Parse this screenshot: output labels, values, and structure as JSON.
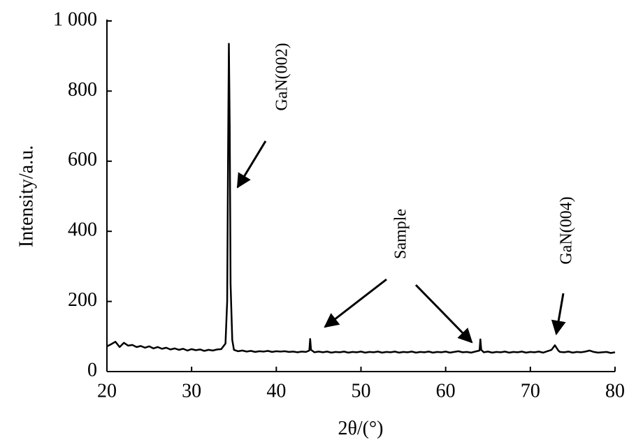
{
  "chart_data": {
    "type": "line",
    "color": "#000000",
    "x_label": "2θ/(°)",
    "y_label": "Intensity/a.u.",
    "xlim": [
      20,
      80
    ],
    "xticks": [
      20,
      30,
      40,
      50,
      60,
      70,
      80
    ],
    "ylim": [
      0,
      1000
    ],
    "yticks": [
      0,
      200,
      400,
      600,
      800,
      {
        "value": 1000,
        "label": "1 000"
      }
    ],
    "annotations": [
      "GaN(002)",
      "Sample",
      "GaN(004)"
    ],
    "x": [
      20,
      20.5,
      21,
      21.5,
      22,
      22.5,
      23,
      23.5,
      24,
      24.5,
      25,
      25.5,
      26,
      26.5,
      27,
      27.5,
      28,
      28.5,
      29,
      29.5,
      30,
      30.5,
      31,
      31.5,
      32,
      32.5,
      33,
      33.5,
      34,
      34.2,
      34.3,
      34.4,
      34.5,
      34.6,
      34.8,
      35,
      35.5,
      36,
      36.5,
      37,
      37.5,
      38,
      38.5,
      39,
      39.5,
      40,
      40.5,
      41,
      41.5,
      42,
      42.5,
      43,
      43.5,
      43.9,
      44,
      44.1,
      44.5,
      45,
      45.5,
      46,
      46.5,
      47,
      47.5,
      48,
      48.5,
      49,
      49.5,
      50,
      50.5,
      51,
      51.5,
      52,
      52.5,
      53,
      53.5,
      54,
      54.5,
      55,
      55.5,
      56,
      56.5,
      57,
      57.5,
      58,
      58.5,
      59,
      59.5,
      60,
      60.5,
      61,
      61.5,
      62,
      62.5,
      63,
      63.5,
      64,
      64.1,
      64.2,
      64.5,
      65,
      65.5,
      66,
      66.5,
      67,
      67.5,
      68,
      68.5,
      69,
      69.5,
      70,
      70.5,
      71,
      71.5,
      72,
      72.5,
      72.9,
      73.3,
      73.5,
      74,
      74.5,
      75,
      75.5,
      76,
      76.5,
      77,
      77.5,
      78,
      78.5,
      79,
      79.5,
      80
    ],
    "values": [
      72,
      78,
      85,
      70,
      82,
      74,
      76,
      70,
      73,
      68,
      72,
      66,
      70,
      65,
      68,
      63,
      66,
      62,
      65,
      60,
      64,
      61,
      63,
      59,
      62,
      60,
      63,
      64,
      80,
      200,
      600,
      935,
      700,
      250,
      90,
      62,
      58,
      60,
      57,
      59,
      56,
      58,
      57,
      59,
      56,
      58,
      57,
      58,
      56,
      57,
      55,
      57,
      56,
      60,
      93,
      62,
      55,
      57,
      55,
      57,
      54,
      56,
      55,
      57,
      54,
      56,
      55,
      57,
      54,
      56,
      55,
      57,
      54,
      56,
      55,
      57,
      54,
      56,
      55,
      57,
      54,
      56,
      55,
      57,
      54,
      56,
      55,
      57,
      54,
      56,
      58,
      55,
      56,
      54,
      57,
      60,
      92,
      62,
      55,
      57,
      54,
      56,
      55,
      57,
      54,
      56,
      55,
      57,
      54,
      56,
      55,
      57,
      54,
      58,
      62,
      75,
      60,
      56,
      55,
      57,
      54,
      56,
      55,
      57,
      60,
      56,
      54,
      55,
      56,
      53,
      55
    ]
  }
}
